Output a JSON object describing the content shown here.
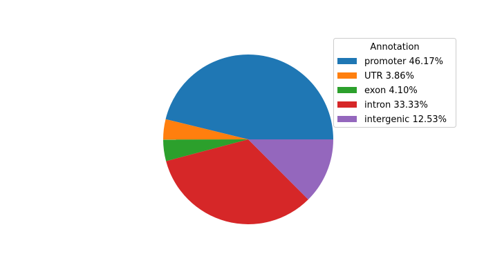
{
  "chart_data": {
    "type": "pie",
    "categories": [
      "promoter",
      "UTR",
      "exon",
      "intron",
      "intergenic"
    ],
    "values": [
      46.17,
      3.86,
      4.1,
      33.33,
      12.53
    ],
    "colors": [
      "#1f77b4",
      "#ff7f0e",
      "#2ca02c",
      "#d62728",
      "#9467bd"
    ],
    "start_angle_deg": 0,
    "direction": "counterclockwise",
    "legend": {
      "title": "Annotation",
      "placement": "upper-right",
      "entries": [
        "promoter 46.17%",
        "UTR 3.86%",
        "exon 4.10%",
        "intron 33.33%",
        "intergenic 12.53%"
      ]
    }
  }
}
